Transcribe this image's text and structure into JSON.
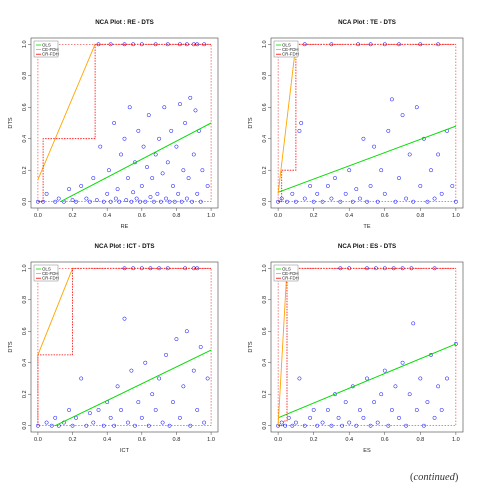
{
  "continued_note": {
    "open": "(",
    "text": "continued",
    "close": ")"
  },
  "colors": {
    "ols": "#00dd00",
    "ce_fdh": "#ffa500",
    "cr_fdh": "#ff0000",
    "points": "#0000ff",
    "ceiling_ref": "#dd0000"
  },
  "chart_data": [
    {
      "type": "scatter",
      "title": "NCA Plot : RE - DTS",
      "xlabel": "RE",
      "ylabel": "DTS",
      "xlim": [
        0,
        1
      ],
      "ylim": [
        0,
        1
      ],
      "x_ticks": [
        "0.0",
        "0.2",
        "0.4",
        "0.6",
        "0.8",
        "1.0"
      ],
      "y_ticks": [
        "0.0",
        "0.2",
        "0.4",
        "0.6",
        "0.8",
        "1.0"
      ],
      "legend": {
        "position": "top-left",
        "entries": [
          "OLS",
          "CE-FDH",
          "CR-FDH"
        ]
      },
      "lines": {
        "OLS": [
          [
            0.13,
            0.0
          ],
          [
            1.0,
            0.5
          ]
        ],
        "CE-FDH": [
          [
            0.0,
            0.0
          ],
          [
            0.03,
            0.0
          ],
          [
            0.03,
            0.4
          ],
          [
            0.33,
            0.4
          ],
          [
            0.33,
            1.0
          ],
          [
            1.0,
            1.0
          ]
        ],
        "CR-FDH": [
          [
            0.0,
            0.14
          ],
          [
            0.33,
            1.0
          ]
        ]
      },
      "points": [
        [
          0.0,
          0.0
        ],
        [
          0.03,
          0.0
        ],
        [
          0.05,
          0.05
        ],
        [
          0.1,
          0.0
        ],
        [
          0.12,
          0.02
        ],
        [
          0.15,
          0.0
        ],
        [
          0.18,
          0.08
        ],
        [
          0.2,
          0.01
        ],
        [
          0.22,
          0.0
        ],
        [
          0.25,
          0.1
        ],
        [
          0.28,
          0.02
        ],
        [
          0.3,
          0.0
        ],
        [
          0.32,
          0.15
        ],
        [
          0.34,
          0.01
        ],
        [
          0.36,
          0.35
        ],
        [
          0.38,
          0.0
        ],
        [
          0.4,
          0.05
        ],
        [
          0.41,
          0.2
        ],
        [
          0.42,
          0.0
        ],
        [
          0.44,
          0.5
        ],
        [
          0.45,
          0.02
        ],
        [
          0.46,
          0.08
        ],
        [
          0.47,
          0.0
        ],
        [
          0.48,
          0.3
        ],
        [
          0.5,
          0.4
        ],
        [
          0.51,
          0.01
        ],
        [
          0.52,
          0.15
        ],
        [
          0.53,
          0.6
        ],
        [
          0.54,
          0.0
        ],
        [
          0.55,
          0.06
        ],
        [
          0.56,
          0.25
        ],
        [
          0.57,
          0.02
        ],
        [
          0.58,
          0.45
        ],
        [
          0.59,
          0.0
        ],
        [
          0.6,
          0.1
        ],
        [
          0.61,
          0.35
        ],
        [
          0.62,
          0.0
        ],
        [
          0.63,
          0.22
        ],
        [
          0.64,
          0.55
        ],
        [
          0.65,
          0.03
        ],
        [
          0.66,
          0.15
        ],
        [
          0.67,
          0.0
        ],
        [
          0.68,
          0.3
        ],
        [
          0.69,
          0.05
        ],
        [
          0.7,
          0.4
        ],
        [
          0.71,
          0.0
        ],
        [
          0.72,
          0.18
        ],
        [
          0.73,
          0.6
        ],
        [
          0.74,
          0.02
        ],
        [
          0.75,
          0.25
        ],
        [
          0.76,
          0.0
        ],
        [
          0.77,
          0.45
        ],
        [
          0.78,
          0.1
        ],
        [
          0.79,
          0.0
        ],
        [
          0.8,
          0.35
        ],
        [
          0.81,
          0.05
        ],
        [
          0.82,
          0.62
        ],
        [
          0.83,
          0.0
        ],
        [
          0.84,
          0.2
        ],
        [
          0.85,
          0.5
        ],
        [
          0.86,
          0.02
        ],
        [
          0.87,
          0.15
        ],
        [
          0.88,
          0.66
        ],
        [
          0.89,
          0.0
        ],
        [
          0.9,
          0.3
        ],
        [
          0.91,
          0.58
        ],
        [
          0.92,
          0.05
        ],
        [
          0.93,
          0.45
        ],
        [
          0.94,
          0.0
        ],
        [
          0.95,
          0.2
        ],
        [
          0.98,
          0.1
        ],
        [
          0.35,
          1.0
        ],
        [
          0.42,
          1.0
        ],
        [
          0.5,
          1.0
        ],
        [
          0.55,
          1.0
        ],
        [
          0.6,
          1.0
        ],
        [
          0.68,
          1.0
        ],
        [
          0.75,
          1.0
        ],
        [
          0.82,
          1.0
        ],
        [
          0.86,
          1.0
        ],
        [
          0.9,
          1.0
        ],
        [
          0.92,
          1.0
        ],
        [
          0.96,
          1.0
        ]
      ]
    },
    {
      "type": "scatter",
      "title": "NCA Plot : TE - DTS",
      "xlabel": "TE",
      "ylabel": "DTS",
      "xlim": [
        0,
        1
      ],
      "ylim": [
        0,
        1
      ],
      "x_ticks": [
        "0.0",
        "0.2",
        "0.4",
        "0.6",
        "0.8",
        "1.0"
      ],
      "y_ticks": [
        "0.0",
        "0.2",
        "0.4",
        "0.6",
        "0.8",
        "1.0"
      ],
      "legend": {
        "position": "top-left",
        "entries": [
          "OLS",
          "CE-FDH",
          "CR-FDH"
        ]
      },
      "lines": {
        "OLS": [
          [
            0.0,
            0.06
          ],
          [
            1.0,
            0.48
          ]
        ],
        "CE-FDH": [
          [
            0.0,
            0.0
          ],
          [
            0.02,
            0.0
          ],
          [
            0.02,
            0.2
          ],
          [
            0.1,
            0.2
          ],
          [
            0.1,
            1.0
          ],
          [
            1.0,
            1.0
          ]
        ],
        "CR-FDH": [
          [
            0.0,
            0.05
          ],
          [
            0.1,
            1.0
          ]
        ]
      },
      "points": [
        [
          0.0,
          0.0
        ],
        [
          0.02,
          0.02
        ],
        [
          0.05,
          0.0
        ],
        [
          0.08,
          0.05
        ],
        [
          0.1,
          0.0
        ],
        [
          0.12,
          0.45
        ],
        [
          0.13,
          0.5
        ],
        [
          0.15,
          0.02
        ],
        [
          0.18,
          0.1
        ],
        [
          0.2,
          0.0
        ],
        [
          0.22,
          0.05
        ],
        [
          0.25,
          0.0
        ],
        [
          0.28,
          0.1
        ],
        [
          0.3,
          0.02
        ],
        [
          0.32,
          0.15
        ],
        [
          0.35,
          0.0
        ],
        [
          0.38,
          0.05
        ],
        [
          0.4,
          0.2
        ],
        [
          0.42,
          0.0
        ],
        [
          0.44,
          0.08
        ],
        [
          0.46,
          0.02
        ],
        [
          0.48,
          0.4
        ],
        [
          0.5,
          0.0
        ],
        [
          0.52,
          0.1
        ],
        [
          0.54,
          0.35
        ],
        [
          0.56,
          0.0
        ],
        [
          0.58,
          0.2
        ],
        [
          0.6,
          0.05
        ],
        [
          0.62,
          0.45
        ],
        [
          0.64,
          0.65
        ],
        [
          0.66,
          0.0
        ],
        [
          0.68,
          0.15
        ],
        [
          0.7,
          0.55
        ],
        [
          0.72,
          0.02
        ],
        [
          0.74,
          0.3
        ],
        [
          0.76,
          0.0
        ],
        [
          0.78,
          0.6
        ],
        [
          0.8,
          0.1
        ],
        [
          0.82,
          0.4
        ],
        [
          0.84,
          0.0
        ],
        [
          0.86,
          0.2
        ],
        [
          0.88,
          0.02
        ],
        [
          0.9,
          0.3
        ],
        [
          0.92,
          0.05
        ],
        [
          0.95,
          0.45
        ],
        [
          0.98,
          0.1
        ],
        [
          1.0,
          0.0
        ],
        [
          0.15,
          1.0
        ],
        [
          0.3,
          1.0
        ],
        [
          0.45,
          1.0
        ],
        [
          0.52,
          1.0
        ],
        [
          0.6,
          1.0
        ],
        [
          0.68,
          1.0
        ],
        [
          0.8,
          1.0
        ],
        [
          0.9,
          1.0
        ]
      ]
    },
    {
      "type": "scatter",
      "title": "NCA Plot : ICT - DTS",
      "xlabel": "ICT",
      "ylabel": "DTS",
      "xlim": [
        0,
        1
      ],
      "ylim": [
        0,
        1
      ],
      "x_ticks": [
        "0.0",
        "0.2",
        "0.4",
        "0.6",
        "0.8",
        "1.0"
      ],
      "y_ticks": [
        "0.0",
        "0.2",
        "0.4",
        "0.6",
        "0.8",
        "1.0"
      ],
      "legend": {
        "position": "top-left",
        "entries": [
          "OLS",
          "CE-FDH",
          "CR-FDH"
        ]
      },
      "lines": {
        "OLS": [
          [
            0.1,
            0.0
          ],
          [
            1.0,
            0.48
          ]
        ],
        "CE-FDH": [
          [
            0.0,
            0.0
          ],
          [
            0.0,
            0.45
          ],
          [
            0.2,
            0.45
          ],
          [
            0.2,
            1.0
          ],
          [
            1.0,
            1.0
          ]
        ],
        "CR-FDH": [
          [
            0.0,
            0.45
          ],
          [
            0.2,
            1.0
          ]
        ]
      },
      "points": [
        [
          0.0,
          0.0
        ],
        [
          0.05,
          0.02
        ],
        [
          0.08,
          0.0
        ],
        [
          0.1,
          0.05
        ],
        [
          0.12,
          0.0
        ],
        [
          0.15,
          0.02
        ],
        [
          0.18,
          0.1
        ],
        [
          0.2,
          0.0
        ],
        [
          0.22,
          0.05
        ],
        [
          0.25,
          0.3
        ],
        [
          0.28,
          0.0
        ],
        [
          0.3,
          0.08
        ],
        [
          0.32,
          0.02
        ],
        [
          0.35,
          0.1
        ],
        [
          0.38,
          0.0
        ],
        [
          0.4,
          0.15
        ],
        [
          0.42,
          0.05
        ],
        [
          0.44,
          0.0
        ],
        [
          0.46,
          0.25
        ],
        [
          0.48,
          0.1
        ],
        [
          0.5,
          0.68
        ],
        [
          0.52,
          0.02
        ],
        [
          0.54,
          0.35
        ],
        [
          0.56,
          0.0
        ],
        [
          0.58,
          0.15
        ],
        [
          0.6,
          0.05
        ],
        [
          0.62,
          0.4
        ],
        [
          0.64,
          0.0
        ],
        [
          0.66,
          0.2
        ],
        [
          0.68,
          0.1
        ],
        [
          0.7,
          0.3
        ],
        [
          0.72,
          0.02
        ],
        [
          0.74,
          0.45
        ],
        [
          0.76,
          0.0
        ],
        [
          0.78,
          0.15
        ],
        [
          0.8,
          0.55
        ],
        [
          0.82,
          0.05
        ],
        [
          0.84,
          0.25
        ],
        [
          0.86,
          0.6
        ],
        [
          0.88,
          0.0
        ],
        [
          0.9,
          0.35
        ],
        [
          0.92,
          0.1
        ],
        [
          0.94,
          0.5
        ],
        [
          0.96,
          0.02
        ],
        [
          0.98,
          0.3
        ],
        [
          0.5,
          1.0
        ],
        [
          0.55,
          1.0
        ],
        [
          0.6,
          1.0
        ],
        [
          0.65,
          1.0
        ],
        [
          0.7,
          1.0
        ],
        [
          0.75,
          1.0
        ],
        [
          0.85,
          1.0
        ],
        [
          0.9,
          1.0
        ],
        [
          0.92,
          1.0
        ]
      ]
    },
    {
      "type": "scatter",
      "title": "NCA Plot : ES - DTS",
      "xlabel": "ES",
      "ylabel": "DTS",
      "xlim": [
        0,
        1
      ],
      "ylim": [
        0,
        1
      ],
      "x_ticks": [
        "0.0",
        "0.2",
        "0.4",
        "0.6",
        "0.8",
        "1.0"
      ],
      "y_ticks": [
        "0.0",
        "0.2",
        "0.4",
        "0.6",
        "0.8",
        "1.0"
      ],
      "legend": {
        "position": "top-left",
        "entries": [
          "OLS",
          "CE-FDH",
          "CR-FDH"
        ]
      },
      "lines": {
        "OLS": [
          [
            0.0,
            0.05
          ],
          [
            1.0,
            0.52
          ]
        ],
        "CE-FDH": [
          [
            0.0,
            0.0
          ],
          [
            0.03,
            0.0
          ],
          [
            0.03,
            0.03
          ],
          [
            0.05,
            0.03
          ],
          [
            0.05,
            1.0
          ],
          [
            1.0,
            1.0
          ]
        ],
        "CR-FDH": [
          [
            0.0,
            0.0
          ],
          [
            0.05,
            1.0
          ]
        ]
      },
      "points": [
        [
          0.0,
          0.0
        ],
        [
          0.02,
          0.02
        ],
        [
          0.04,
          0.0
        ],
        [
          0.06,
          0.05
        ],
        [
          0.08,
          0.0
        ],
        [
          0.1,
          0.02
        ],
        [
          0.12,
          0.3
        ],
        [
          0.15,
          0.0
        ],
        [
          0.18,
          0.05
        ],
        [
          0.2,
          0.1
        ],
        [
          0.22,
          0.0
        ],
        [
          0.25,
          0.02
        ],
        [
          0.28,
          0.1
        ],
        [
          0.3,
          0.0
        ],
        [
          0.32,
          0.2
        ],
        [
          0.34,
          0.05
        ],
        [
          0.36,
          0.0
        ],
        [
          0.38,
          0.15
        ],
        [
          0.4,
          0.02
        ],
        [
          0.42,
          0.25
        ],
        [
          0.44,
          0.0
        ],
        [
          0.46,
          0.1
        ],
        [
          0.48,
          0.05
        ],
        [
          0.5,
          0.3
        ],
        [
          0.52,
          0.0
        ],
        [
          0.54,
          0.15
        ],
        [
          0.56,
          0.02
        ],
        [
          0.58,
          0.2
        ],
        [
          0.6,
          0.35
        ],
        [
          0.62,
          0.0
        ],
        [
          0.64,
          0.1
        ],
        [
          0.66,
          0.25
        ],
        [
          0.68,
          0.05
        ],
        [
          0.7,
          0.4
        ],
        [
          0.72,
          0.0
        ],
        [
          0.74,
          0.2
        ],
        [
          0.76,
          0.65
        ],
        [
          0.78,
          0.1
        ],
        [
          0.8,
          0.3
        ],
        [
          0.82,
          0.0
        ],
        [
          0.84,
          0.15
        ],
        [
          0.86,
          0.45
        ],
        [
          0.88,
          0.05
        ],
        [
          0.9,
          0.25
        ],
        [
          0.92,
          0.1
        ],
        [
          0.95,
          0.3
        ],
        [
          1.0,
          0.52
        ],
        [
          0.35,
          1.0
        ],
        [
          0.4,
          1.0
        ],
        [
          0.5,
          1.0
        ],
        [
          0.55,
          1.0
        ],
        [
          0.6,
          1.0
        ],
        [
          0.65,
          1.0
        ],
        [
          0.7,
          1.0
        ],
        [
          0.75,
          1.0
        ],
        [
          0.88,
          1.0
        ]
      ]
    }
  ]
}
